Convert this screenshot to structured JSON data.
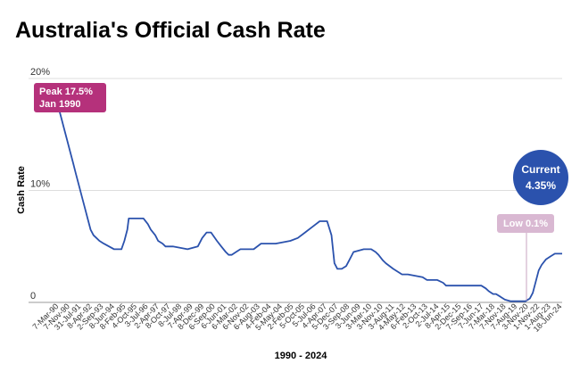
{
  "chart_data": {
    "type": "line",
    "title": "Australia's Official Cash Rate",
    "xlabel": "1990 - 2024",
    "ylabel": "Cash Rate",
    "ylim": [
      0,
      20
    ],
    "y_ticks": [
      {
        "value": 0,
        "label": "0"
      },
      {
        "value": 10,
        "label": "10%"
      },
      {
        "value": 20,
        "label": "20%"
      }
    ],
    "grid": true,
    "x_tick_labels": [
      "7-Mar-90",
      "7-Nov-90",
      "31-Jul-91",
      "8-Apr-92",
      "2-Sep-93",
      "8-Jun-94",
      "8-Feb-95",
      "4-Oct-95",
      "3-Jul-96",
      "2-Apr-97",
      "8-Oct-97",
      "8-Jul-98",
      "7-Apr-99",
      "8-Dec-99",
      "6-Sep-00",
      "6-Jun-01",
      "6-Mar-02",
      "6-Nov-02",
      "6-Aug-03",
      "4-Feb-04",
      "5-May-04",
      "2-Feb-05",
      "5-Oct-05",
      "5-Jul-06",
      "4-Apr-07",
      "5-Dec-07",
      "3-Sep-08",
      "3-Jun-09",
      "3-Mar-10",
      "3-Nov-10",
      "3-Aug-11",
      "4-May-12",
      "6-Feb-13",
      "2-Oct-13",
      "2-Jul-14",
      "8-Apr-15",
      "2-Dec-15",
      "7-Sep-16",
      "7-Jun-17",
      "7-Mar-18",
      "7-Nov-18",
      "7-Aug-19",
      "3-Nov-20",
      "1-Nov-22",
      "1-Aug-23",
      "18-Jun-24"
    ],
    "series": [
      {
        "x": [
          1990.0,
          1990.2,
          1990.4,
          1990.6,
          1990.8,
          1991.0,
          1991.2,
          1991.4,
          1991.6,
          1991.8,
          1992.0,
          1992.2,
          1992.4,
          1992.6,
          1992.8,
          1993.0,
          1993.3,
          1994.0,
          1994.5,
          1994.7,
          1994.9,
          1995.0,
          1995.5,
          1996.0,
          1996.3,
          1996.5,
          1996.8,
          1997.0,
          1997.3,
          1997.5,
          1997.7,
          1998.0,
          1999.0,
          1999.7,
          2000.0,
          2000.3,
          2000.6,
          2001.0,
          2001.3,
          2001.6,
          2001.8,
          2002.0,
          2002.3,
          2002.6,
          2003.0,
          2003.5,
          2004.0,
          2005.0,
          2006.0,
          2006.5,
          2007.0,
          2007.5,
          2008.0,
          2008.5,
          2008.8,
          2009.0,
          2009.2,
          2009.5,
          2009.8,
          2010.0,
          2010.3,
          2011.0,
          2011.5,
          2011.8,
          2012.0,
          2012.3,
          2012.5,
          2013.0,
          2013.3,
          2013.6,
          2014.0,
          2015.0,
          2015.3,
          2015.5,
          2016.0,
          2016.4,
          2016.6,
          2017.0,
          2018.0,
          2019.0,
          2019.3,
          2019.5,
          2019.8,
          2020.0,
          2020.3,
          2020.6,
          2021.0,
          2022.0,
          2022.3,
          2022.5,
          2022.7,
          2022.9,
          2023.1,
          2023.4,
          2023.7,
          2024.0,
          2024.3,
          2024.5
        ],
        "y": [
          17.5,
          17.5,
          16.5,
          15.5,
          14.5,
          13.5,
          12.5,
          11.5,
          10.5,
          9.5,
          8.5,
          7.5,
          6.5,
          6.0,
          5.75,
          5.5,
          5.25,
          4.75,
          4.75,
          5.5,
          6.5,
          7.5,
          7.5,
          7.5,
          7.0,
          6.5,
          6.0,
          5.5,
          5.25,
          5.0,
          5.0,
          5.0,
          4.75,
          5.0,
          5.75,
          6.25,
          6.25,
          5.5,
          5.0,
          4.5,
          4.25,
          4.25,
          4.5,
          4.75,
          4.75,
          4.75,
          5.25,
          5.25,
          5.5,
          5.75,
          6.25,
          6.75,
          7.25,
          7.25,
          6.0,
          3.5,
          3.0,
          3.0,
          3.25,
          3.75,
          4.5,
          4.75,
          4.75,
          4.5,
          4.25,
          3.75,
          3.5,
          3.0,
          2.75,
          2.5,
          2.5,
          2.25,
          2.0,
          2.0,
          2.0,
          1.75,
          1.5,
          1.5,
          1.5,
          1.5,
          1.25,
          1.0,
          0.75,
          0.75,
          0.5,
          0.25,
          0.1,
          0.1,
          0.35,
          0.85,
          1.85,
          2.85,
          3.35,
          3.85,
          4.1,
          4.35,
          4.35,
          4.35
        ]
      }
    ],
    "annotations": {
      "peak": {
        "line1": "Peak 17.5%",
        "line2": "Jan 1990",
        "color": "#b5317b"
      },
      "low": {
        "text": "Low 0.1%",
        "color": "#d9b8d2"
      },
      "current": {
        "line1": "Current",
        "line2": "4.35%",
        "color": "#2b52ad"
      }
    },
    "colors": {
      "line": "#2b52ad",
      "grid": "#dddddd"
    }
  }
}
